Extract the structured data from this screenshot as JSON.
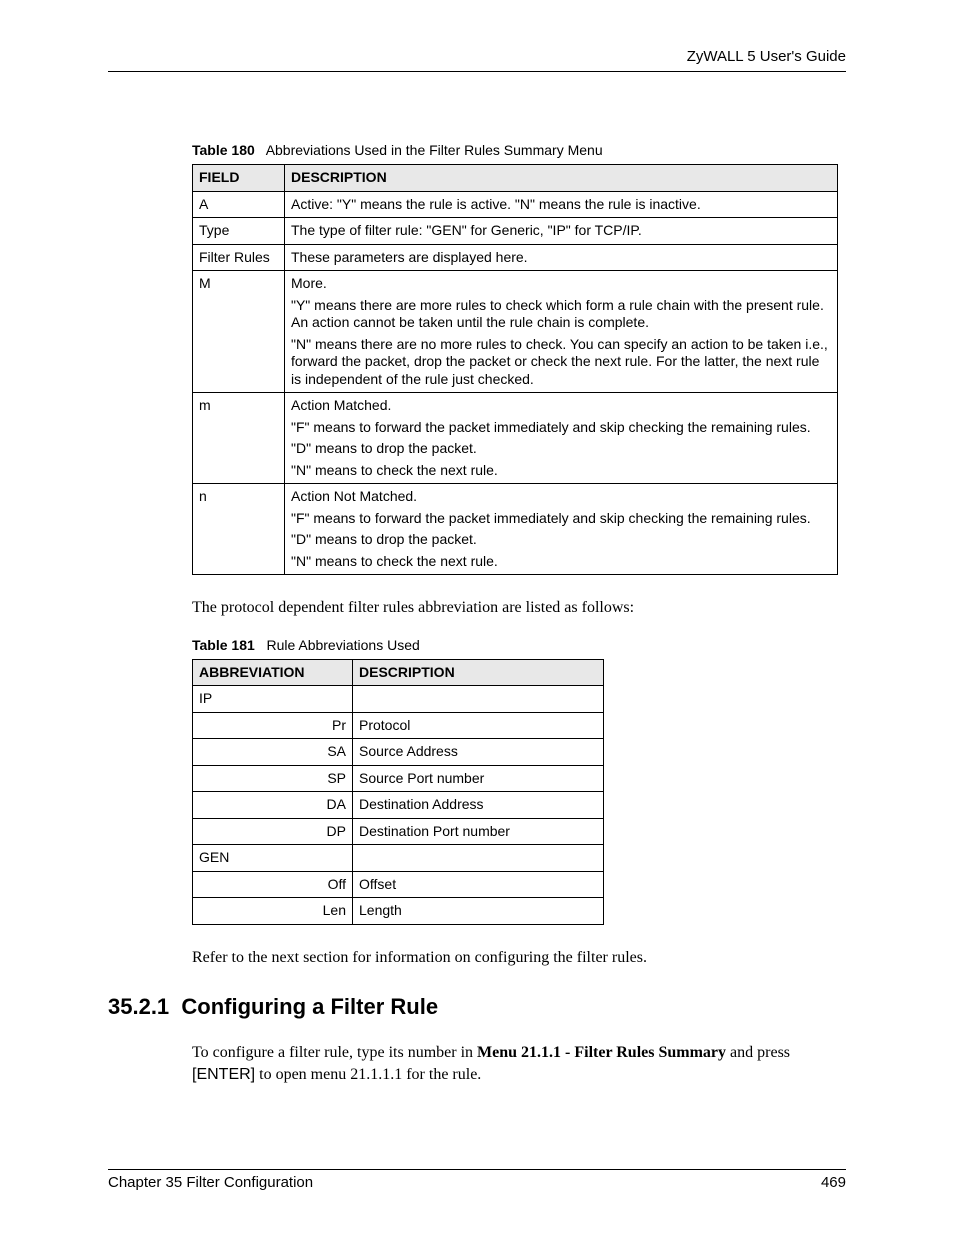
{
  "header": {
    "guide": "ZyWALL 5 User's Guide"
  },
  "table180": {
    "caption_label": "Table 180",
    "caption_text": "Abbreviations Used in the Filter Rules Summary Menu",
    "columns": {
      "field": "FIELD",
      "desc": "DESCRIPTION"
    },
    "rows": [
      {
        "field": "A",
        "desc": "Active: \"Y\" means the rule is active. \"N\" means the rule is inactive."
      },
      {
        "field": "Type",
        "desc": "The type of filter rule: \"GEN\" for Generic, \"IP\" for TCP/IP."
      },
      {
        "field": "Filter Rules",
        "desc": "These parameters are displayed here."
      },
      {
        "field": "M",
        "desc": "More.\n\"Y\" means there are more rules to check which form a rule chain with the present rule. An action cannot be taken until the rule chain is complete.\n\"N\" means there are no more rules to check. You can specify an action to be taken i.e., forward the packet, drop the packet or check the next rule. For the latter, the next rule is independent of the rule just checked."
      },
      {
        "field": "m",
        "desc": "Action Matched.\n\"F\" means to forward the packet immediately and skip checking the remaining rules.\n\"D\" means to drop the packet.\n\"N\" means to check the next rule."
      },
      {
        "field": "n",
        "desc": "Action Not Matched.\n\"F\" means to forward the packet immediately and skip checking the remaining rules.\n\"D\" means to drop the packet.\n\"N\" means to check the next rule."
      }
    ]
  },
  "body1": "The protocol dependent filter rules abbreviation are listed as follows:",
  "table181": {
    "caption_label": "Table 181",
    "caption_text": "Rule Abbreviations Used",
    "columns": {
      "abbr": "ABBREVIATION",
      "desc": "DESCRIPTION"
    },
    "rows": [
      {
        "abbr": "IP",
        "desc": "",
        "align": "left"
      },
      {
        "abbr": "Pr",
        "desc": "Protocol",
        "align": "right"
      },
      {
        "abbr": "SA",
        "desc": "Source Address",
        "align": "right"
      },
      {
        "abbr": "SP",
        "desc": "Source Port number",
        "align": "right"
      },
      {
        "abbr": "DA",
        "desc": "Destination Address",
        "align": "right"
      },
      {
        "abbr": "DP",
        "desc": "Destination Port number",
        "align": "right"
      },
      {
        "abbr": "GEN",
        "desc": "",
        "align": "left"
      },
      {
        "abbr": "Off",
        "desc": "Offset",
        "align": "right"
      },
      {
        "abbr": "Len",
        "desc": "Length",
        "align": "right"
      }
    ]
  },
  "body2": "Refer to the next section for information on configuring the filter rules.",
  "section": {
    "number": "35.2.1",
    "title": "Configuring a Filter Rule"
  },
  "body3": {
    "pre": "To configure a filter rule, type its number in ",
    "bold1": "Menu 21.1.1 - Filter Rules Summary",
    "mid": " and press ",
    "enter": "[ENTER]",
    "post": " to open menu 21.1.1.1 for the rule."
  },
  "footer": {
    "chapter": "Chapter 35 Filter Configuration",
    "page": "469"
  }
}
